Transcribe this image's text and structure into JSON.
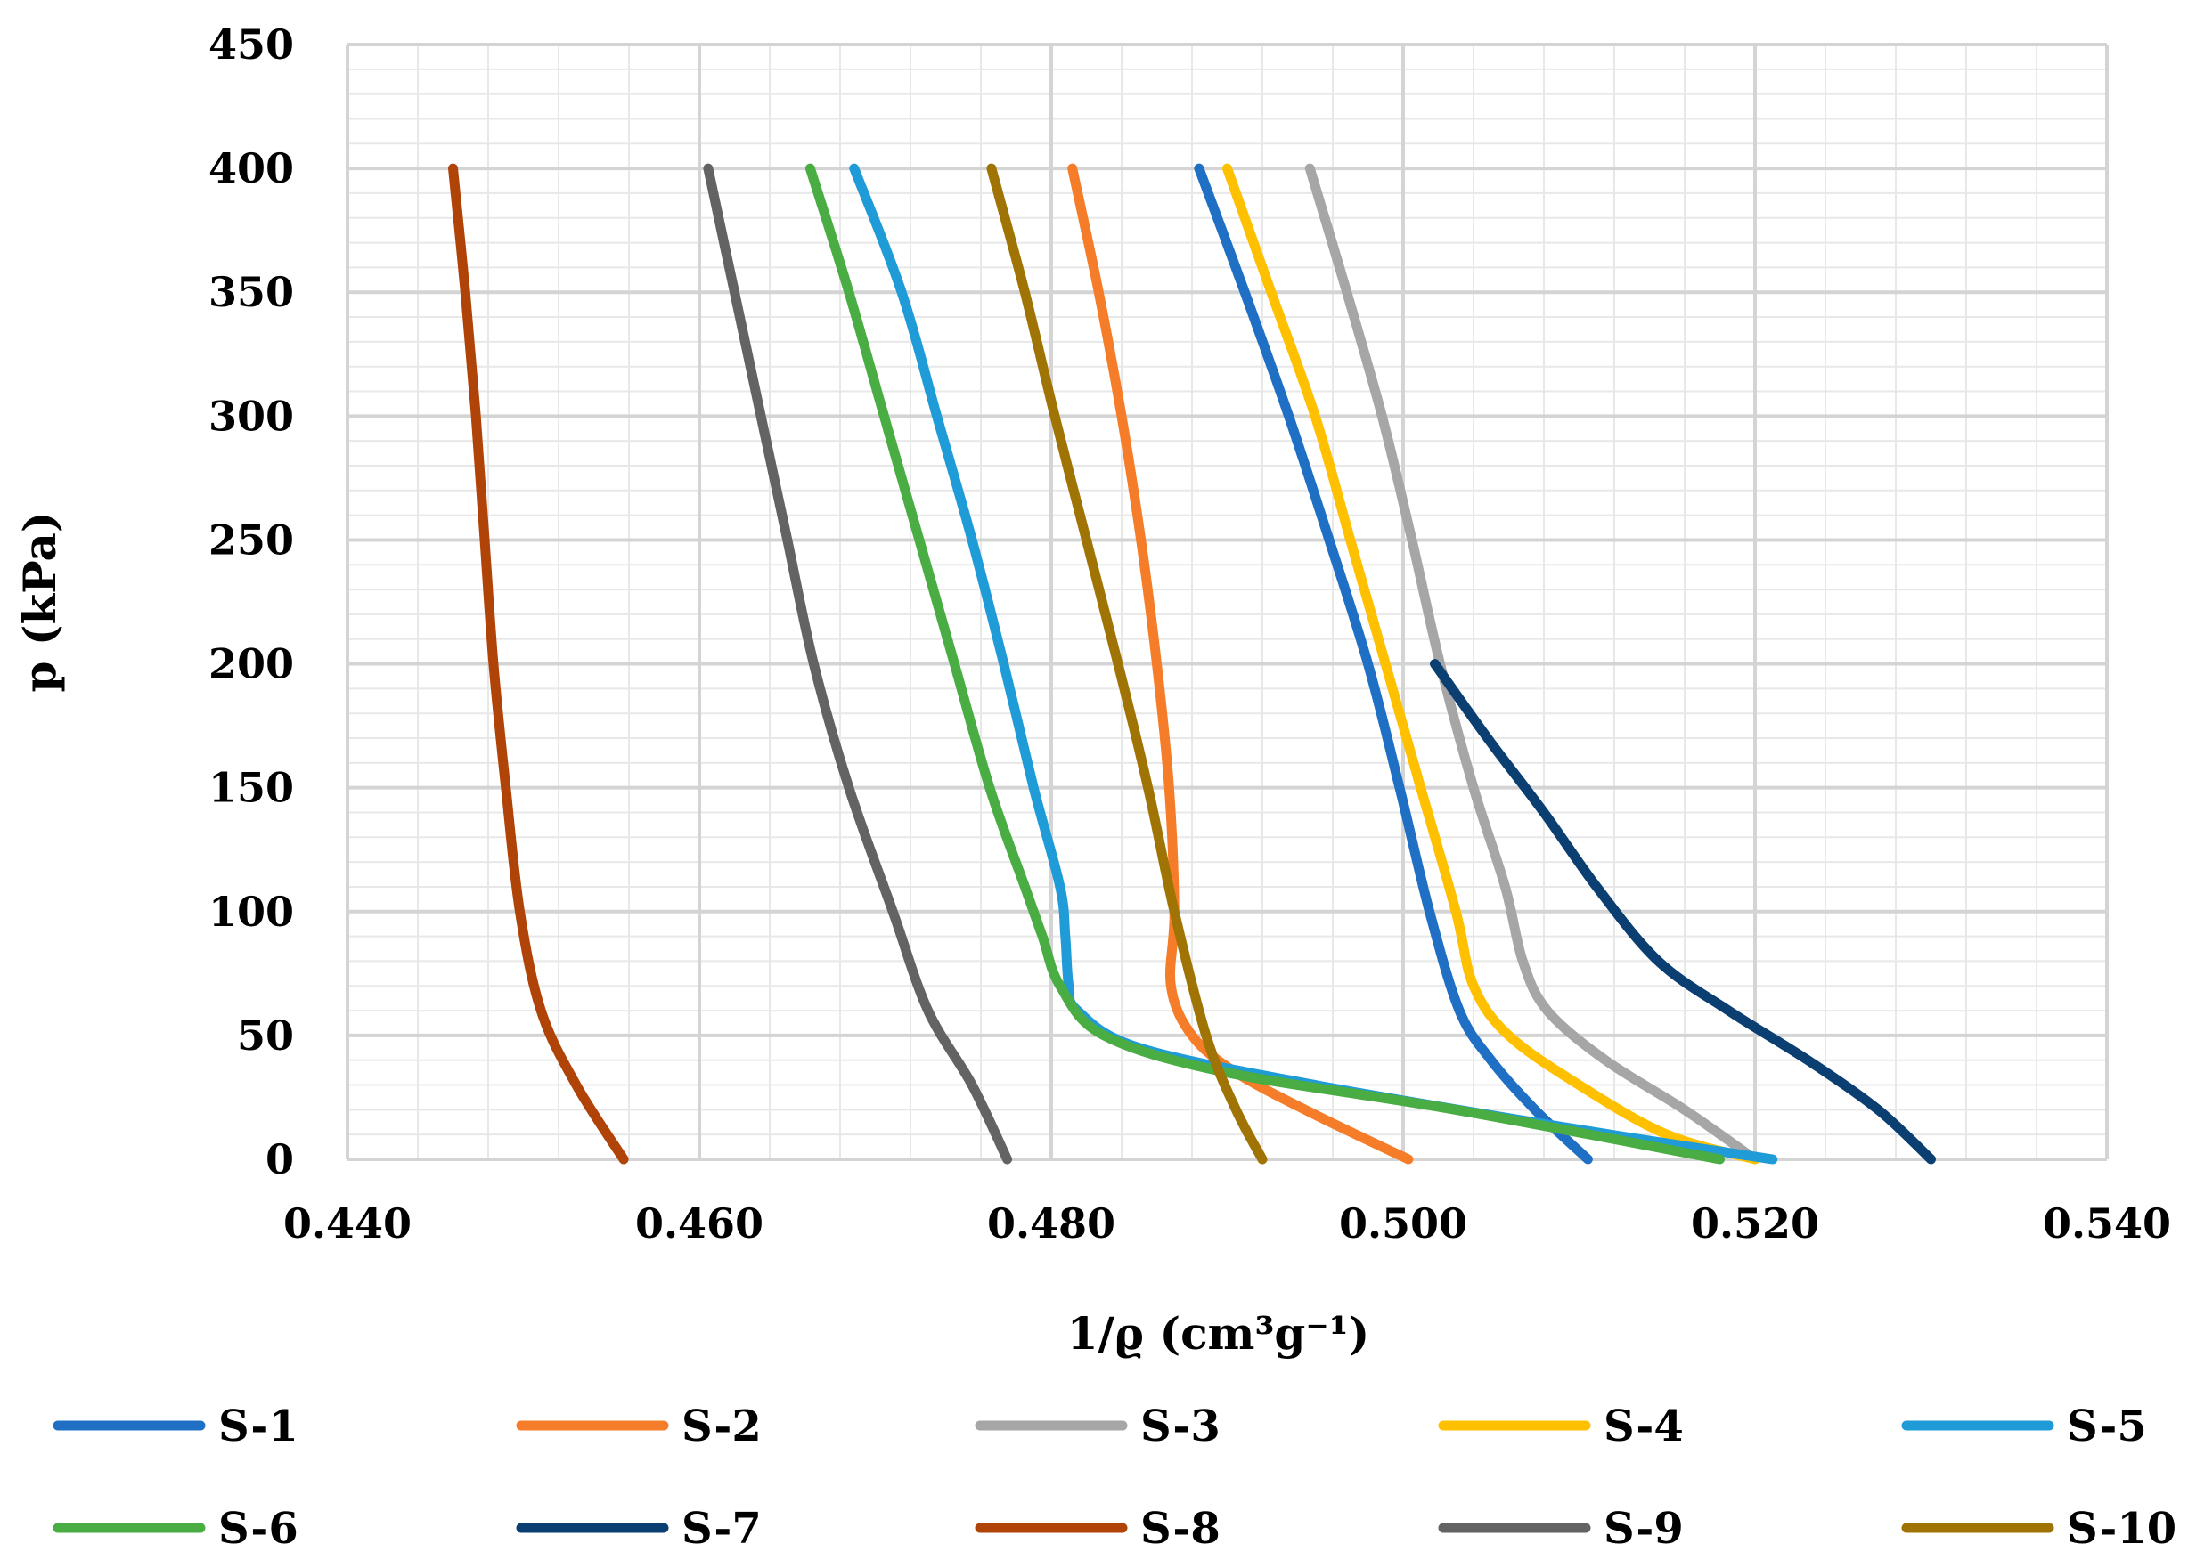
{
  "chart_data": {
    "type": "line",
    "title": "",
    "xlabel": "1/ϱ (cm³g⁻¹)",
    "ylabel": "p (kPa)",
    "xlim": [
      0.44,
      0.54
    ],
    "ylim": [
      0,
      450
    ],
    "xticks": [
      "0.440",
      "0.460",
      "0.480",
      "0.500",
      "0.520",
      "0.540"
    ],
    "yticks": [
      "0",
      "50",
      "100",
      "150",
      "200",
      "250",
      "300",
      "350",
      "400",
      "450"
    ],
    "legend_position": "bottom",
    "grid": true,
    "series": [
      {
        "name": "S-1",
        "color": "#1f6fc5",
        "points": [
          [
            0.4884,
            400
          ],
          [
            0.491,
            350
          ],
          [
            0.4935,
            300
          ],
          [
            0.4958,
            250
          ],
          [
            0.498,
            200
          ],
          [
            0.4998,
            150
          ],
          [
            0.5015,
            100
          ],
          [
            0.5032,
            60
          ],
          [
            0.505,
            40
          ],
          [
            0.5075,
            20
          ],
          [
            0.5105,
            0
          ]
        ]
      },
      {
        "name": "S-2",
        "color": "#f57d2a",
        "points": [
          [
            0.4812,
            400
          ],
          [
            0.4827,
            350
          ],
          [
            0.484,
            300
          ],
          [
            0.4851,
            250
          ],
          [
            0.486,
            200
          ],
          [
            0.4867,
            150
          ],
          [
            0.487,
            100
          ],
          [
            0.4868,
            70
          ],
          [
            0.488,
            50
          ],
          [
            0.4905,
            35
          ],
          [
            0.495,
            18
          ],
          [
            0.5003,
            0
          ]
        ]
      },
      {
        "name": "S-3",
        "color": "#a6a6a6",
        "points": [
          [
            0.4947,
            400
          ],
          [
            0.4968,
            350
          ],
          [
            0.4988,
            300
          ],
          [
            0.5005,
            250
          ],
          [
            0.5021,
            200
          ],
          [
            0.504,
            150
          ],
          [
            0.5058,
            110
          ],
          [
            0.5068,
            80
          ],
          [
            0.5082,
            60
          ],
          [
            0.5115,
            40
          ],
          [
            0.516,
            20
          ],
          [
            0.52,
            0
          ]
        ]
      },
      {
        "name": "S-4",
        "color": "#ffc000",
        "points": [
          [
            0.49,
            400
          ],
          [
            0.4925,
            350
          ],
          [
            0.495,
            300
          ],
          [
            0.497,
            250
          ],
          [
            0.499,
            200
          ],
          [
            0.501,
            150
          ],
          [
            0.503,
            100
          ],
          [
            0.504,
            70
          ],
          [
            0.506,
            50
          ],
          [
            0.51,
            30
          ],
          [
            0.515,
            10
          ],
          [
            0.52,
            0
          ]
        ]
      },
      {
        "name": "S-5",
        "color": "#1f9bd7",
        "points": [
          [
            0.4688,
            400
          ],
          [
            0.4715,
            350
          ],
          [
            0.4735,
            300
          ],
          [
            0.4755,
            250
          ],
          [
            0.4773,
            200
          ],
          [
            0.479,
            150
          ],
          [
            0.4805,
            110
          ],
          [
            0.4808,
            90
          ],
          [
            0.481,
            70
          ],
          [
            0.4815,
            60
          ],
          [
            0.485,
            45
          ],
          [
            0.495,
            30
          ],
          [
            0.51,
            12
          ],
          [
            0.521,
            0
          ]
        ]
      },
      {
        "name": "S-6",
        "color": "#4aad44",
        "points": [
          [
            0.4663,
            400
          ],
          [
            0.4685,
            350
          ],
          [
            0.4705,
            300
          ],
          [
            0.4725,
            250
          ],
          [
            0.4745,
            200
          ],
          [
            0.4765,
            150
          ],
          [
            0.4785,
            110
          ],
          [
            0.4795,
            90
          ],
          [
            0.4805,
            70
          ],
          [
            0.483,
            50
          ],
          [
            0.49,
            35
          ],
          [
            0.503,
            20
          ],
          [
            0.518,
            0
          ]
        ]
      },
      {
        "name": "S-7",
        "color": "#0b3f72",
        "points": [
          [
            0.5018,
            200
          ],
          [
            0.5048,
            170
          ],
          [
            0.508,
            140
          ],
          [
            0.511,
            110
          ],
          [
            0.5145,
            80
          ],
          [
            0.5185,
            60
          ],
          [
            0.523,
            40
          ],
          [
            0.527,
            20
          ],
          [
            0.53,
            0
          ]
        ]
      },
      {
        "name": "S-8",
        "color": "#b04307",
        "points": [
          [
            0.446,
            400
          ],
          [
            0.4467,
            350
          ],
          [
            0.4473,
            300
          ],
          [
            0.4478,
            250
          ],
          [
            0.4483,
            200
          ],
          [
            0.449,
            150
          ],
          [
            0.4498,
            100
          ],
          [
            0.451,
            60
          ],
          [
            0.453,
            30
          ],
          [
            0.4557,
            0
          ]
        ]
      },
      {
        "name": "S-9",
        "color": "#636363",
        "points": [
          [
            0.4605,
            400
          ],
          [
            0.462,
            350
          ],
          [
            0.4635,
            300
          ],
          [
            0.465,
            250
          ],
          [
            0.4665,
            200
          ],
          [
            0.4685,
            150
          ],
          [
            0.471,
            100
          ],
          [
            0.473,
            60
          ],
          [
            0.4755,
            30
          ],
          [
            0.4775,
            0
          ]
        ]
      },
      {
        "name": "S-10",
        "color": "#a07404",
        "points": [
          [
            0.4766,
            400
          ],
          [
            0.4785,
            350
          ],
          [
            0.4802,
            300
          ],
          [
            0.482,
            250
          ],
          [
            0.4838,
            200
          ],
          [
            0.4855,
            150
          ],
          [
            0.487,
            100
          ],
          [
            0.4888,
            50
          ],
          [
            0.4905,
            20
          ],
          [
            0.492,
            0
          ]
        ]
      }
    ]
  }
}
